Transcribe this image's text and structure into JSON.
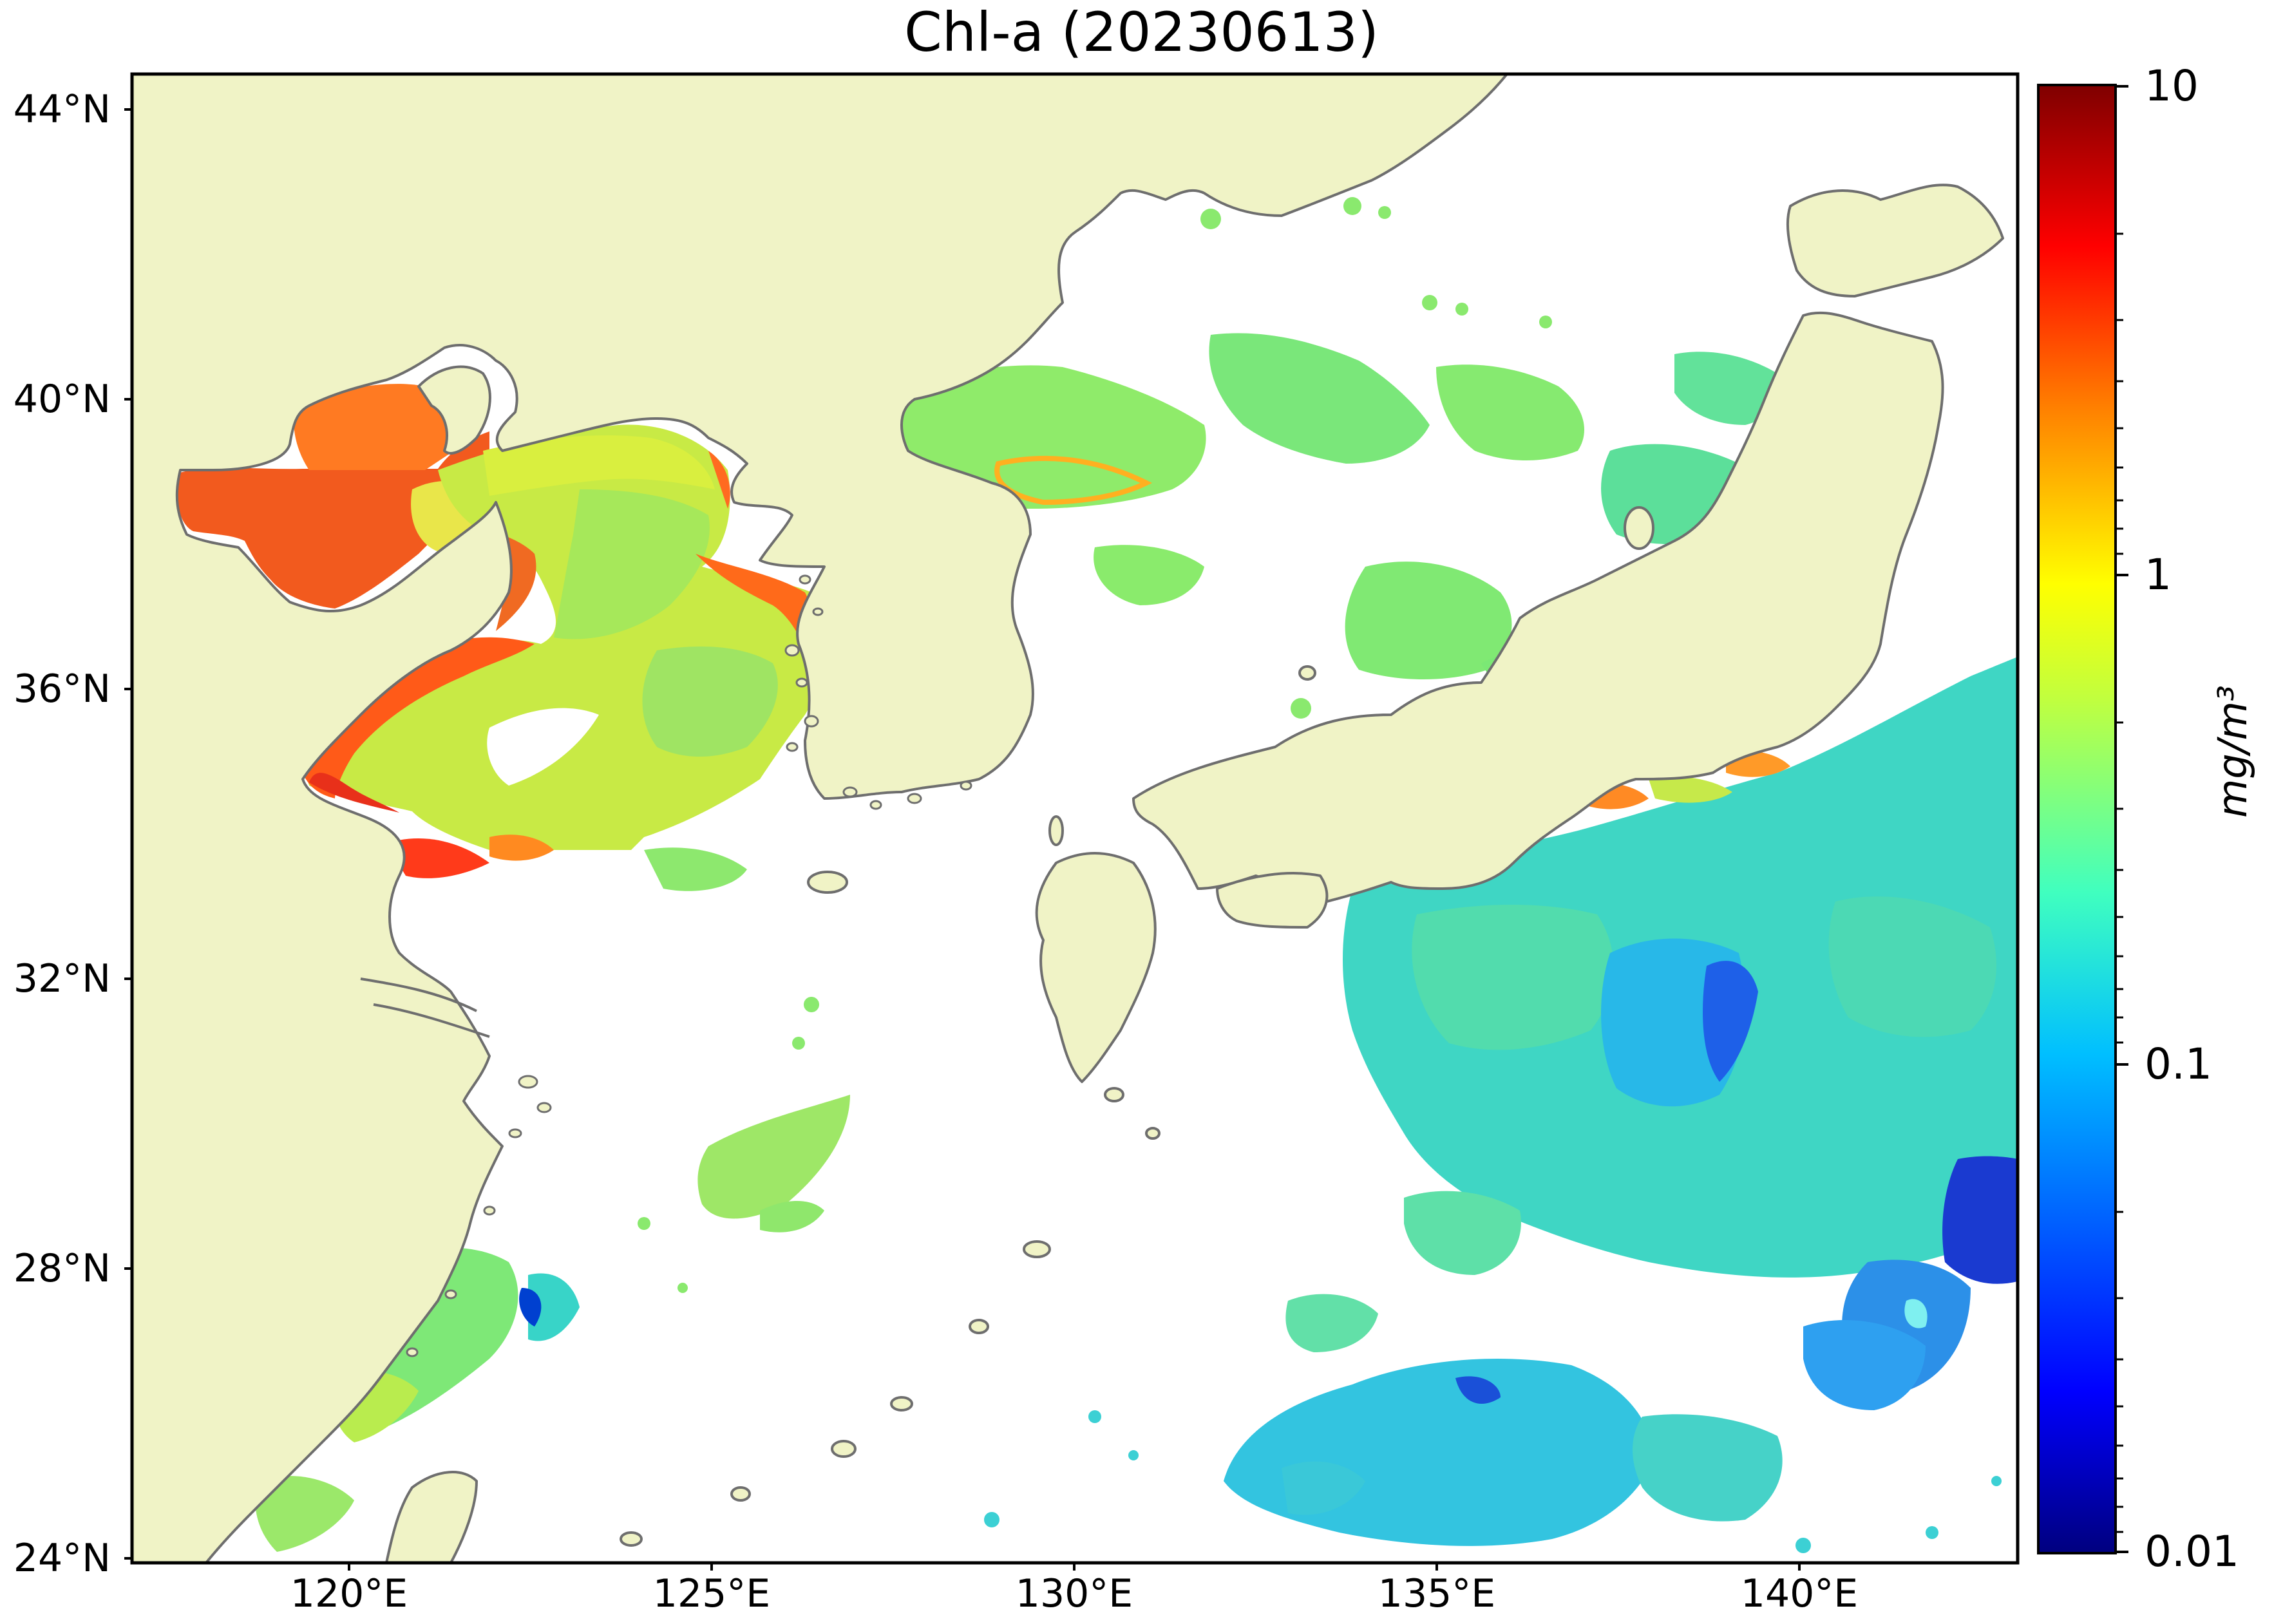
{
  "title": "Chl-a (20230613)",
  "map": {
    "extent": {
      "lon_min": 117,
      "lon_max": 143,
      "lat_min": 24,
      "lat_max": 44.5
    },
    "lat_ticks": [
      {
        "value": 44,
        "label": "44°N"
      },
      {
        "value": 40,
        "label": "40°N"
      },
      {
        "value": 36,
        "label": "36°N"
      },
      {
        "value": 32,
        "label": "32°N"
      },
      {
        "value": 28,
        "label": "28°N"
      },
      {
        "value": 24,
        "label": "24°N"
      }
    ],
    "lon_ticks": [
      {
        "value": 120,
        "label": "120°E"
      },
      {
        "value": 125,
        "label": "125°E"
      },
      {
        "value": 130,
        "label": "130°E"
      },
      {
        "value": 135,
        "label": "135°E"
      },
      {
        "value": 140,
        "label": "140°E"
      }
    ],
    "colors": {
      "land": "#f0f3c6",
      "coast": "#6e6e6e",
      "ocean_no_data": "#ffffff"
    }
  },
  "colorbar": {
    "scale": "log",
    "range": [
      0.01,
      10
    ],
    "ticks": [
      "10",
      "1",
      "0.1",
      "0.01"
    ],
    "unit": "mg/m³",
    "colormap": [
      "#00007f",
      "#0000ff",
      "#007fff",
      "#00ffff",
      "#7fff7f",
      "#ffff00",
      "#ff7f00",
      "#ff0000",
      "#7f0000"
    ]
  }
}
